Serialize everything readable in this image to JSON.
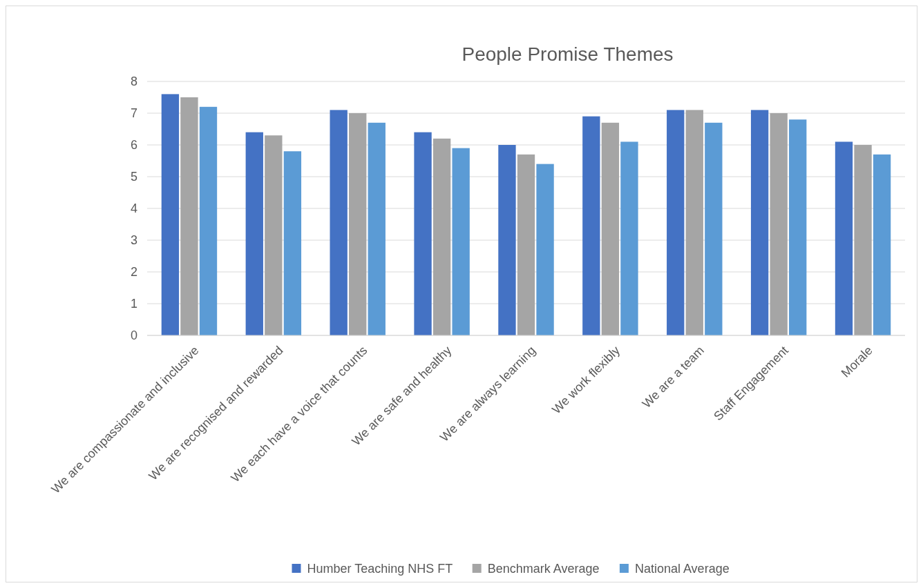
{
  "chart_data": {
    "type": "bar",
    "title": "People Promise Themes",
    "categories": [
      "We are compassionate and inclusive",
      "We are recognised and rewarded",
      "We each have a voice that counts",
      "We are safe and healthy",
      "We are always learning",
      "We work flexibly",
      "We are a team",
      "Staff Engagement",
      "Morale"
    ],
    "series": [
      {
        "name": "Humber Teaching NHS FT",
        "color": "#4472c4",
        "values": [
          7.6,
          6.4,
          7.1,
          6.4,
          6.0,
          6.9,
          7.1,
          7.1,
          6.1
        ]
      },
      {
        "name": "Benchmark Average",
        "color": "#a5a5a5",
        "values": [
          7.5,
          6.3,
          7.0,
          6.2,
          5.7,
          6.7,
          7.1,
          7.0,
          6.0
        ]
      },
      {
        "name": "National Average",
        "color": "#5b9bd5",
        "values": [
          7.2,
          5.8,
          6.7,
          5.9,
          5.4,
          6.1,
          6.7,
          6.8,
          5.7
        ]
      }
    ],
    "ylim": [
      0,
      8
    ],
    "yticks": [
      0,
      1,
      2,
      3,
      4,
      5,
      6,
      7,
      8
    ],
    "grid": "y",
    "legend": "bottom"
  }
}
